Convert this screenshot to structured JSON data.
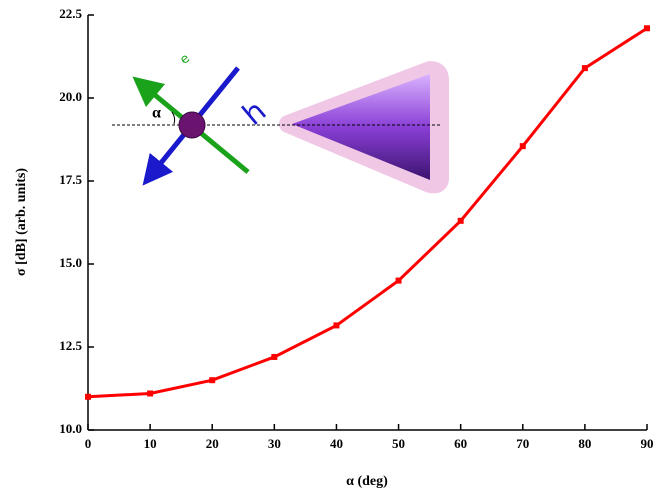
{
  "chart_data": {
    "type": "line",
    "x_label": "α (deg)",
    "y_label": "σ [dB] (arb. units)",
    "x": [
      0,
      10,
      20,
      30,
      40,
      50,
      60,
      70,
      80,
      90
    ],
    "series": [
      {
        "color": "#ff0000",
        "values": [
          11.0,
          11.1,
          11.5,
          12.2,
          13.15,
          14.5,
          16.3,
          18.55,
          20.9,
          22.1
        ]
      }
    ],
    "xlim": [
      0,
      90
    ],
    "xticks": [
      0,
      10,
      20,
      30,
      40,
      50,
      60,
      70,
      80,
      90
    ],
    "ylim": [
      10,
      22.5
    ],
    "yticks": [
      {
        "value": 10,
        "label": "10.0"
      },
      12.5,
      {
        "value": 15,
        "label": "15.0"
      },
      17.5,
      {
        "value": 20,
        "label": "20.0"
      },
      22.5
    ],
    "annotations": [
      "e",
      "h",
      "α"
    ]
  }
}
